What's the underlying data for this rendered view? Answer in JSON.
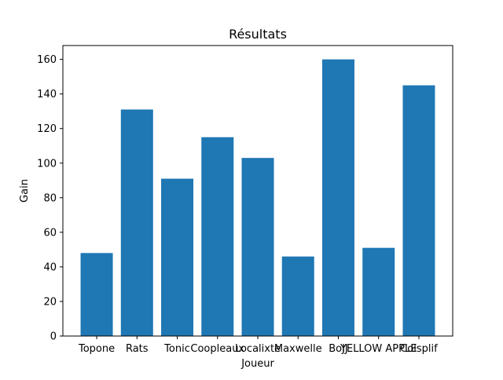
{
  "chart_data": {
    "type": "bar",
    "title": "Résultats",
    "xlabel": "Joueur",
    "ylabel": "Gain",
    "categories": [
      "Topone",
      "Rats",
      "Tonic",
      "Coopleaux",
      "Localixte",
      "Maxwelle",
      "BoJJ",
      "YELLOW APPLE",
      "Colsplif"
    ],
    "values": [
      48,
      131,
      91,
      115,
      103,
      46,
      160,
      51,
      145
    ],
    "ylim": [
      0,
      168
    ],
    "yticks": [
      0,
      20,
      40,
      60,
      80,
      100,
      120,
      140,
      160
    ],
    "grid": false,
    "bar_color": "#1f77b4"
  }
}
